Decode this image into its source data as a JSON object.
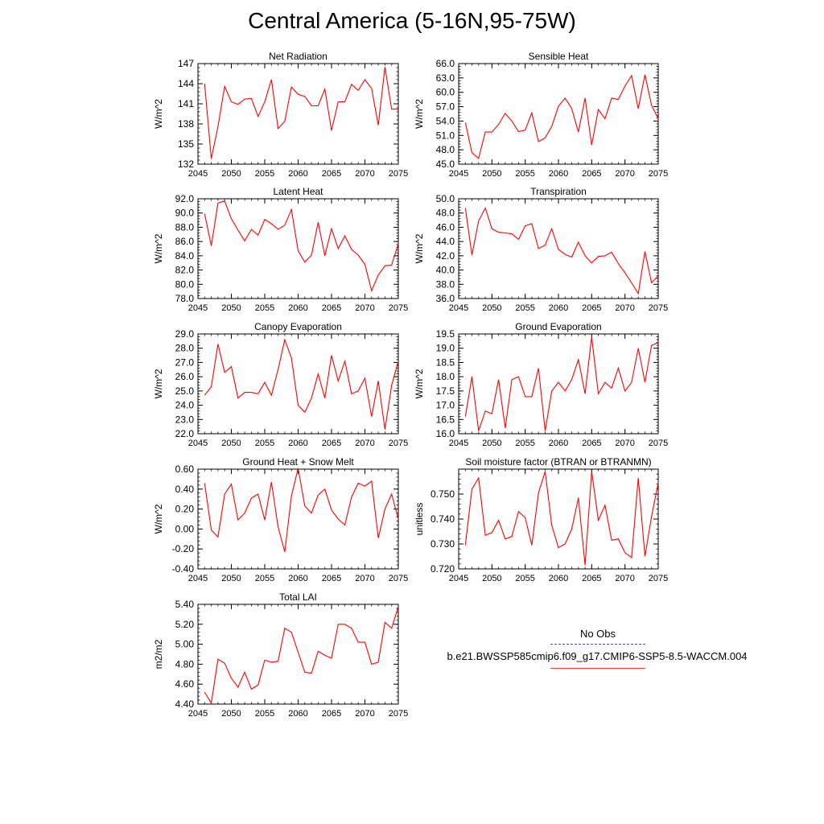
{
  "figure": {
    "title": "Central America (5-16N,95-75W)",
    "line_color": "#ff0000",
    "legend": {
      "entries": [
        {
          "label": "No Obs",
          "color": "#4a4a9a",
          "style": "dashed"
        },
        {
          "label": "b.e21.BWSSP585cmip6.f09_g17.CMIP6-SSP5-8.5-WACCM.004",
          "color": "#ff3a3a",
          "style": "solid"
        }
      ]
    }
  },
  "chart_data": [
    {
      "type": "line",
      "title": "Net Radiation",
      "xlabel": "",
      "ylabel": "W/m^2",
      "xlim": [
        2045,
        2075
      ],
      "ylim": [
        132,
        147
      ],
      "xticks": [
        2045,
        2050,
        2055,
        2060,
        2065,
        2070,
        2075
      ],
      "yticks": [
        132,
        135,
        138,
        141,
        144,
        147
      ],
      "yticklabels": [
        "132",
        "135",
        "138",
        "141",
        "144",
        "147"
      ],
      "x": [
        2046,
        2047,
        2048,
        2049,
        2050,
        2051,
        2052,
        2053,
        2054,
        2055,
        2056,
        2057,
        2058,
        2059,
        2060,
        2061,
        2062,
        2063,
        2064,
        2065,
        2066,
        2067,
        2068,
        2069,
        2070,
        2071,
        2072,
        2073,
        2074,
        2075
      ],
      "series": [
        {
          "name": "b.e21.BWSSP585cmip6.f09_g17.CMIP6-SSP5-8.5-WACCM.004",
          "values": [
            144.0,
            132.8,
            137.6,
            143.6,
            141.3,
            140.9,
            141.7,
            141.8,
            139.1,
            141.3,
            144.6,
            137.3,
            138.4,
            143.5,
            142.4,
            142.1,
            140.7,
            140.7,
            143.2,
            137.0,
            141.3,
            141.3,
            143.9,
            143.0,
            144.6,
            143.3,
            137.8,
            146.5,
            140.2,
            140.2
          ]
        }
      ]
    },
    {
      "type": "line",
      "title": "Sensible Heat",
      "xlabel": "",
      "ylabel": "W/m^2",
      "xlim": [
        2045,
        2075
      ],
      "ylim": [
        45,
        66
      ],
      "xticks": [
        2045,
        2050,
        2055,
        2060,
        2065,
        2070,
        2075
      ],
      "yticks": [
        45,
        48,
        51,
        54,
        57,
        60,
        63,
        66
      ],
      "yticklabels": [
        "45.0",
        "48.0",
        "51.0",
        "54.0",
        "57.0",
        "60.0",
        "63.0",
        "66.0"
      ],
      "x": [
        2046,
        2047,
        2048,
        2049,
        2050,
        2051,
        2052,
        2053,
        2054,
        2055,
        2056,
        2057,
        2058,
        2059,
        2060,
        2061,
        2062,
        2063,
        2064,
        2065,
        2066,
        2067,
        2068,
        2069,
        2070,
        2071,
        2072,
        2073,
        2074,
        2075
      ],
      "series": [
        {
          "name": "b.e21.BWSSP585cmip6.f09_g17.CMIP6-SSP5-8.5-WACCM.004",
          "values": [
            53.7,
            47.4,
            46.2,
            51.7,
            51.7,
            53.3,
            55.6,
            54.0,
            51.8,
            52.1,
            55.7,
            49.7,
            50.5,
            52.9,
            57.1,
            58.8,
            56.6,
            51.7,
            58.8,
            49.0,
            56.4,
            54.5,
            58.8,
            58.5,
            61.3,
            63.5,
            56.6,
            63.7,
            57.3,
            54.5
          ]
        }
      ]
    },
    {
      "type": "line",
      "title": "Latent Heat",
      "xlabel": "",
      "ylabel": "W/m^2",
      "xlim": [
        2045,
        2075
      ],
      "ylim": [
        78,
        92
      ],
      "xticks": [
        2045,
        2050,
        2055,
        2060,
        2065,
        2070,
        2075
      ],
      "yticks": [
        78,
        80,
        82,
        84,
        86,
        88,
        90,
        92
      ],
      "yticklabels": [
        "78.0",
        "80.0",
        "82.0",
        "84.0",
        "86.0",
        "88.0",
        "90.0",
        "92.0"
      ],
      "x": [
        2046,
        2047,
        2048,
        2049,
        2050,
        2051,
        2052,
        2053,
        2054,
        2055,
        2056,
        2057,
        2058,
        2059,
        2060,
        2061,
        2062,
        2063,
        2064,
        2065,
        2066,
        2067,
        2068,
        2069,
        2070,
        2071,
        2072,
        2073,
        2074,
        2075
      ],
      "series": [
        {
          "name": "b.e21.BWSSP585cmip6.f09_g17.CMIP6-SSP5-8.5-WACCM.004",
          "values": [
            89.9,
            85.4,
            91.4,
            91.7,
            89.2,
            87.6,
            86.1,
            87.7,
            86.9,
            89.1,
            88.5,
            87.7,
            88.3,
            90.5,
            84.7,
            83.1,
            84.1,
            88.7,
            84.0,
            87.8,
            85.0,
            86.8,
            84.9,
            84.1,
            82.8,
            79.1,
            81.3,
            82.6,
            82.7,
            85.7
          ]
        }
      ]
    },
    {
      "type": "line",
      "title": "Transpiration",
      "xlabel": "",
      "ylabel": "W/m^2",
      "xlim": [
        2045,
        2075
      ],
      "ylim": [
        36,
        50
      ],
      "xticks": [
        2045,
        2050,
        2055,
        2060,
        2065,
        2070,
        2075
      ],
      "yticks": [
        36,
        38,
        40,
        42,
        44,
        46,
        48,
        50
      ],
      "yticklabels": [
        "36.0",
        "38.0",
        "40.0",
        "42.0",
        "44.0",
        "46.0",
        "48.0",
        "50.0"
      ],
      "x": [
        2046,
        2047,
        2048,
        2049,
        2050,
        2051,
        2052,
        2053,
        2054,
        2055,
        2056,
        2057,
        2058,
        2059,
        2060,
        2061,
        2062,
        2063,
        2064,
        2065,
        2066,
        2067,
        2068,
        2069,
        2070,
        2071,
        2072,
        2073,
        2074,
        2075
      ],
      "series": [
        {
          "name": "b.e21.BWSSP585cmip6.f09_g17.CMIP6-SSP5-8.5-WACCM.004",
          "values": [
            48.7,
            42.1,
            46.9,
            48.7,
            45.8,
            45.3,
            45.2,
            45.1,
            44.3,
            46.2,
            46.5,
            43.0,
            43.5,
            45.8,
            42.9,
            42.2,
            41.8,
            43.9,
            42.0,
            41.0,
            41.9,
            42.0,
            42.5,
            40.9,
            39.6,
            38.2,
            36.7,
            42.6,
            38.2,
            39.2
          ]
        }
      ]
    },
    {
      "type": "line",
      "title": "Canopy Evaporation",
      "xlabel": "",
      "ylabel": "W/m^2",
      "xlim": [
        2045,
        2075
      ],
      "ylim": [
        22,
        29
      ],
      "xticks": [
        2045,
        2050,
        2055,
        2060,
        2065,
        2070,
        2075
      ],
      "yticks": [
        22,
        23,
        24,
        25,
        26,
        27,
        28,
        29
      ],
      "yticklabels": [
        "22.0",
        "23.0",
        "24.0",
        "25.0",
        "26.0",
        "27.0",
        "28.0",
        "29.0"
      ],
      "x": [
        2046,
        2047,
        2048,
        2049,
        2050,
        2051,
        2052,
        2053,
        2054,
        2055,
        2056,
        2057,
        2058,
        2059,
        2060,
        2061,
        2062,
        2063,
        2064,
        2065,
        2066,
        2067,
        2068,
        2069,
        2070,
        2071,
        2072,
        2073,
        2074,
        2075
      ],
      "series": [
        {
          "name": "b.e21.BWSSP585cmip6.f09_g17.CMIP6-SSP5-8.5-WACCM.004",
          "values": [
            24.7,
            25.3,
            28.3,
            26.3,
            26.7,
            24.5,
            24.9,
            24.9,
            24.8,
            25.6,
            24.7,
            26.5,
            28.6,
            27.3,
            24.0,
            23.5,
            24.5,
            26.2,
            24.5,
            27.5,
            25.7,
            27.1,
            24.8,
            25.0,
            25.9,
            23.2,
            25.7,
            22.3,
            25.4,
            27.1
          ]
        }
      ]
    },
    {
      "type": "line",
      "title": "Ground Evaporation",
      "xlabel": "",
      "ylabel": "W/m^2",
      "xlim": [
        2045,
        2075
      ],
      "ylim": [
        16,
        19.5
      ],
      "xticks": [
        2045,
        2050,
        2055,
        2060,
        2065,
        2070,
        2075
      ],
      "yticks": [
        16,
        16.5,
        17,
        17.5,
        18,
        18.5,
        19,
        19.5
      ],
      "yticklabels": [
        "16.0",
        "16.5",
        "17.0",
        "17.5",
        "18.0",
        "18.5",
        "19.0",
        "19.5"
      ],
      "x": [
        2046,
        2047,
        2048,
        2049,
        2050,
        2051,
        2052,
        2053,
        2054,
        2055,
        2056,
        2057,
        2058,
        2059,
        2060,
        2061,
        2062,
        2063,
        2064,
        2065,
        2066,
        2067,
        2068,
        2069,
        2070,
        2071,
        2072,
        2073,
        2074,
        2075
      ],
      "series": [
        {
          "name": "b.e21.BWSSP585cmip6.f09_g17.CMIP6-SSP5-8.5-WACCM.004",
          "values": [
            16.6,
            18.0,
            16.1,
            16.8,
            16.7,
            17.9,
            16.2,
            17.9,
            18.0,
            17.3,
            17.3,
            18.3,
            16.1,
            17.5,
            17.8,
            17.5,
            17.9,
            18.6,
            17.4,
            19.4,
            17.4,
            17.8,
            17.6,
            18.3,
            17.5,
            17.8,
            19.0,
            17.8,
            19.1,
            19.2
          ]
        }
      ]
    },
    {
      "type": "line",
      "title": "Ground Heat + Snow Melt",
      "xlabel": "",
      "ylabel": "W/m^2",
      "xlim": [
        2045,
        2075
      ],
      "ylim": [
        -0.4,
        0.6
      ],
      "xticks": [
        2045,
        2050,
        2055,
        2060,
        2065,
        2070,
        2075
      ],
      "yticks": [
        -0.4,
        -0.2,
        0,
        0.2,
        0.4,
        0.6
      ],
      "yticklabels": [
        "-0.40",
        "-0.20",
        "0.00",
        "0.20",
        "0.40",
        "0.60"
      ],
      "x": [
        2046,
        2047,
        2048,
        2049,
        2050,
        2051,
        2052,
        2053,
        2054,
        2055,
        2056,
        2057,
        2058,
        2059,
        2060,
        2061,
        2062,
        2063,
        2064,
        2065,
        2066,
        2067,
        2068,
        2069,
        2070,
        2071,
        2072,
        2073,
        2074,
        2075
      ],
      "series": [
        {
          "name": "b.e21.BWSSP585cmip6.f09_g17.CMIP6-SSP5-8.5-WACCM.004",
          "values": [
            0.46,
            -0.01,
            -0.08,
            0.35,
            0.45,
            0.09,
            0.16,
            0.31,
            0.35,
            0.09,
            0.47,
            0.02,
            -0.23,
            0.33,
            0.61,
            0.23,
            0.16,
            0.34,
            0.4,
            0.19,
            0.1,
            0.04,
            0.32,
            0.46,
            0.43,
            0.48,
            -0.09,
            0.2,
            0.35,
            0.1
          ]
        }
      ]
    },
    {
      "type": "line",
      "title": "Soil moisture factor (BTRAN or BTRANMN)",
      "xlabel": "",
      "ylabel": "unitless",
      "xlim": [
        2045,
        2075
      ],
      "ylim": [
        0.72,
        0.76
      ],
      "xticks": [
        2045,
        2050,
        2055,
        2060,
        2065,
        2070,
        2075
      ],
      "yticks": [
        0.72,
        0.73,
        0.74,
        0.75
      ],
      "yticklabels": [
        "0.720",
        "0.730",
        "0.740",
        "0.750"
      ],
      "x": [
        2046,
        2047,
        2048,
        2049,
        2050,
        2051,
        2052,
        2053,
        2054,
        2055,
        2056,
        2057,
        2058,
        2059,
        2060,
        2061,
        2062,
        2063,
        2064,
        2065,
        2066,
        2067,
        2068,
        2069,
        2070,
        2071,
        2072,
        2073,
        2074,
        2075
      ],
      "series": [
        {
          "name": "b.e21.BWSSP585cmip6.f09_g17.CMIP6-SSP5-8.5-WACCM.004",
          "values": [
            0.7295,
            0.752,
            0.7565,
            0.7335,
            0.7345,
            0.7395,
            0.732,
            0.733,
            0.743,
            0.7405,
            0.7295,
            0.7505,
            0.759,
            0.7375,
            0.7285,
            0.73,
            0.736,
            0.7485,
            0.7215,
            0.759,
            0.7395,
            0.7455,
            0.7315,
            0.732,
            0.7265,
            0.7245,
            0.7565,
            0.725,
            0.741,
            0.7545
          ]
        }
      ]
    },
    {
      "type": "line",
      "title": "Total LAI",
      "xlabel": "",
      "ylabel": "m2/m2",
      "xlim": [
        2045,
        2075
      ],
      "ylim": [
        4.4,
        5.4
      ],
      "xticks": [
        2045,
        2050,
        2055,
        2060,
        2065,
        2070,
        2075
      ],
      "yticks": [
        4.4,
        4.6,
        4.8,
        5.0,
        5.2,
        5.4
      ],
      "yticklabels": [
        "4.40",
        "4.60",
        "4.80",
        "5.00",
        "5.20",
        "5.40"
      ],
      "x": [
        2046,
        2047,
        2048,
        2049,
        2050,
        2051,
        2052,
        2053,
        2054,
        2055,
        2056,
        2057,
        2058,
        2059,
        2060,
        2061,
        2062,
        2063,
        2064,
        2065,
        2066,
        2067,
        2068,
        2069,
        2070,
        2071,
        2072,
        2073,
        2074,
        2075
      ],
      "series": [
        {
          "name": "b.e21.BWSSP585cmip6.f09_g17.CMIP6-SSP5-8.5-WACCM.004",
          "values": [
            4.52,
            4.41,
            4.85,
            4.81,
            4.66,
            4.57,
            4.72,
            4.55,
            4.59,
            4.84,
            4.82,
            4.83,
            5.16,
            5.12,
            4.92,
            4.72,
            4.71,
            4.93,
            4.89,
            4.86,
            5.2,
            5.2,
            5.16,
            5.02,
            5.02,
            4.8,
            4.82,
            5.22,
            5.16,
            5.38
          ]
        }
      ]
    }
  ]
}
